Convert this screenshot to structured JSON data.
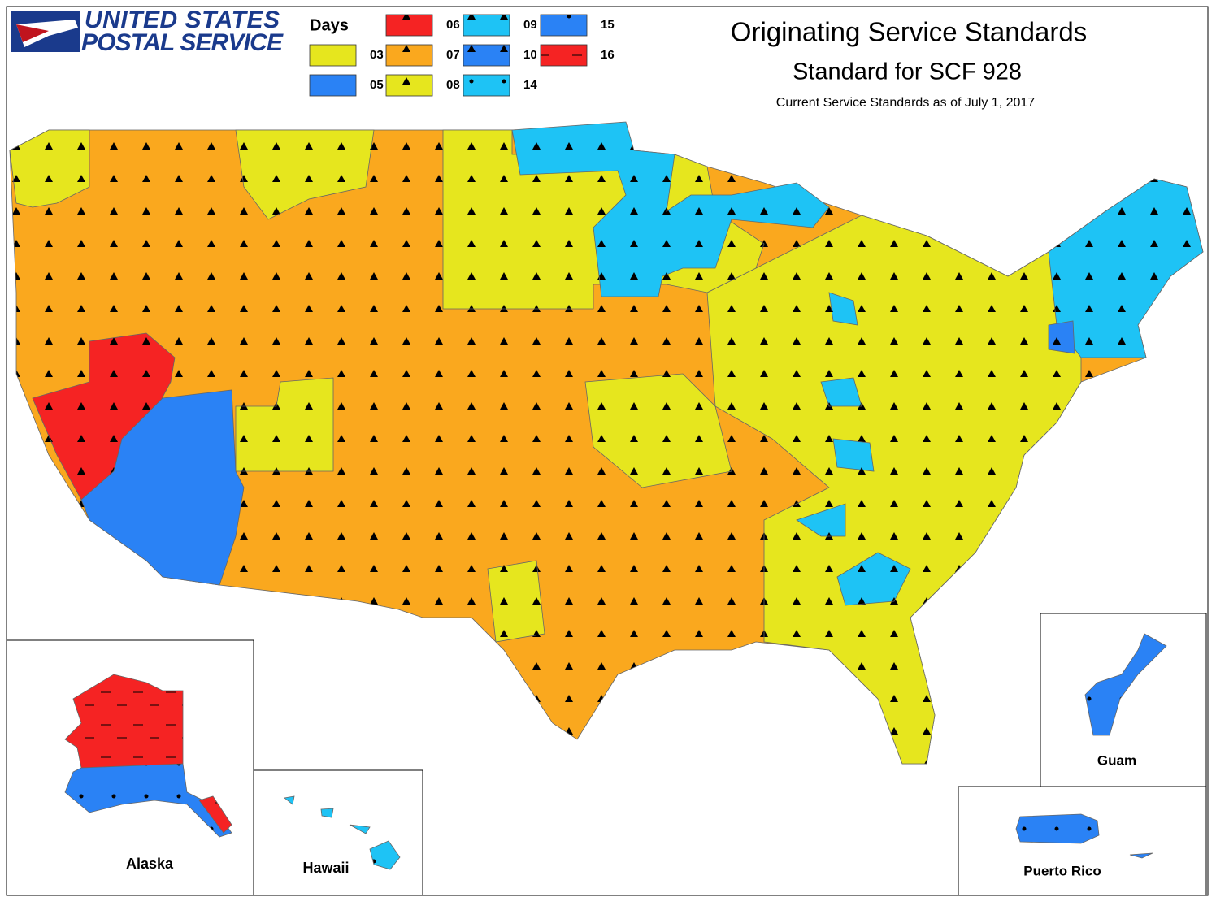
{
  "logo": {
    "line1": "UNITED STATES",
    "line2": "POSTAL SERVICE"
  },
  "title": "Originating Service Standards",
  "subtitle": "Standard for SCF 928",
  "note": "Current Service Standards as of July 1, 2017",
  "legend": {
    "title": "Days",
    "items": [
      {
        "label": "03",
        "color": "#e6e61e",
        "pattern": "none"
      },
      {
        "label": "05",
        "color": "#2a82f5",
        "pattern": "none"
      },
      {
        "label": "06",
        "color": "#f52323",
        "pattern": "triangle"
      },
      {
        "label": "07",
        "color": "#faa81e",
        "pattern": "triangle"
      },
      {
        "label": "08",
        "color": "#e6e61e",
        "pattern": "triangle"
      },
      {
        "label": "09",
        "color": "#1ec3f5",
        "pattern": "triangle"
      },
      {
        "label": "10",
        "color": "#2a82f5",
        "pattern": "triangle"
      },
      {
        "label": "14",
        "color": "#1ec3f5",
        "pattern": "dot"
      },
      {
        "label": "15",
        "color": "#2a82f5",
        "pattern": "dot"
      },
      {
        "label": "16",
        "color": "#f52323",
        "pattern": "dash"
      }
    ]
  },
  "insets": [
    {
      "label": "Alaska"
    },
    {
      "label": "Hawaii"
    },
    {
      "label": "Guam"
    },
    {
      "label": "Puerto Rico"
    }
  ]
}
